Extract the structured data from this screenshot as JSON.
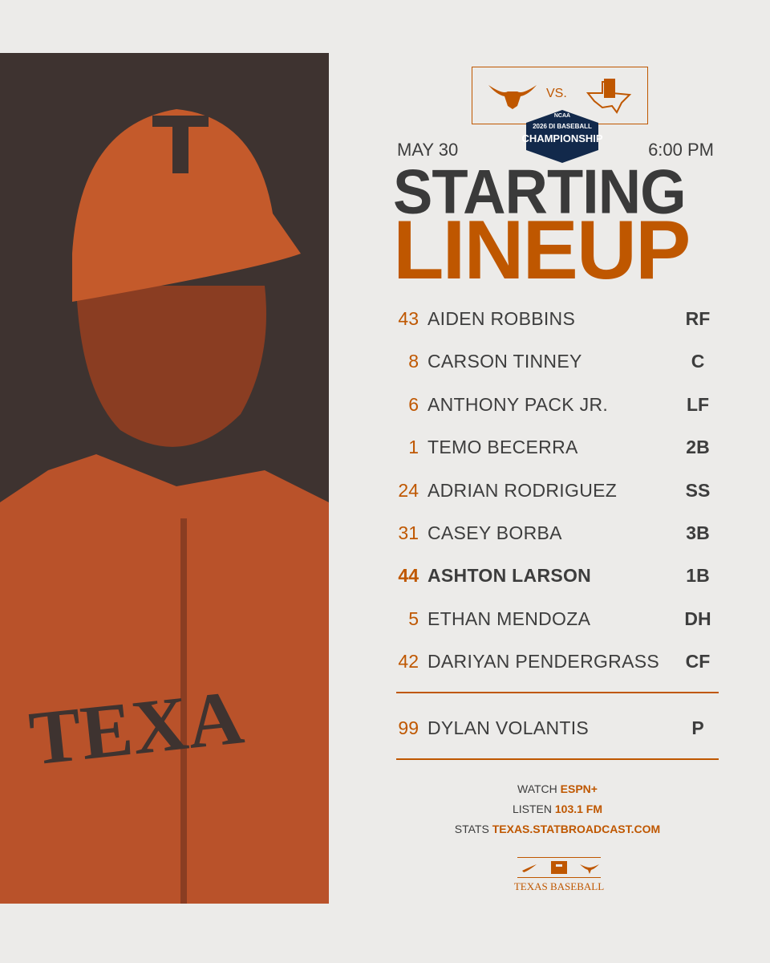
{
  "photo": {
    "jersey": "TEXA"
  },
  "matchup": {
    "versus": "VS.",
    "date": "MAY 30",
    "time": "6:00 PM"
  },
  "event": {
    "organizer": "NCAA",
    "line1": "2026 DI BASEBALL",
    "line2": "CHAMPIONSHIP"
  },
  "title": {
    "line1": "STARTING",
    "line2": "LINEUP"
  },
  "lineup": [
    {
      "number": "43",
      "name": "AIDEN ROBBINS",
      "position": "RF",
      "bold": false
    },
    {
      "number": "8",
      "name": "CARSON TINNEY",
      "position": "C",
      "bold": false
    },
    {
      "number": "6",
      "name": "ANTHONY PACK JR.",
      "position": "LF",
      "bold": false
    },
    {
      "number": "1",
      "name": "TEMO BECERRA",
      "position": "2B",
      "bold": false
    },
    {
      "number": "24",
      "name": "ADRIAN RODRIGUEZ",
      "position": "SS",
      "bold": false
    },
    {
      "number": "31",
      "name": "CASEY BORBA",
      "position": "3B",
      "bold": false
    },
    {
      "number": "44",
      "name": "ASHTON LARSON",
      "position": "1B",
      "bold": true
    },
    {
      "number": "5",
      "name": "ETHAN MENDOZA",
      "position": "DH",
      "bold": false
    },
    {
      "number": "42",
      "name": "DARIYAN PENDERGRASS",
      "position": "CF",
      "bold": false
    }
  ],
  "pitcher": {
    "number": "99",
    "name": "DYLAN VOLANTIS",
    "position": "P"
  },
  "media": [
    {
      "label": "WATCH",
      "value": "ESPN+"
    },
    {
      "label": "LISTEN",
      "value": "103.1 FM"
    },
    {
      "label": "STATS",
      "value": "TEXAS.STATBROADCAST.COM"
    }
  ],
  "footer": "TEXAS BASEBALL"
}
